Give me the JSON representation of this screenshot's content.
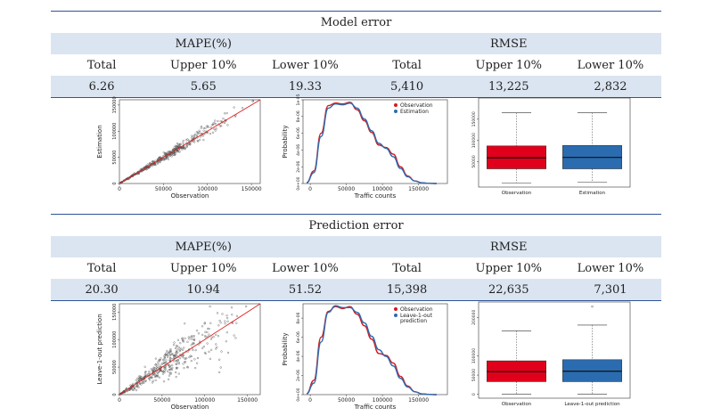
{
  "sections": [
    {
      "title": "Model error",
      "groups": [
        "MAPE(%)",
        "RMSE"
      ],
      "headers": [
        "Total",
        "Upper 10%",
        "Lower 10%",
        "Total",
        "Upper 10%",
        "Lower 10%"
      ],
      "values": [
        "6.26",
        "5.65",
        "19.33",
        "5,410",
        "13,225",
        "2,832"
      ],
      "scatter": {
        "type": "scatter",
        "xlabel": "Observation",
        "ylabel": "Estimation",
        "xticks": [
          "0",
          "50000",
          "100000",
          "150000"
        ],
        "yticks": [
          "0",
          "50000",
          "100000",
          "150000"
        ],
        "xlim": [
          0,
          160000
        ],
        "ylim": [
          0,
          160000
        ],
        "spread": 0.07,
        "fit_line_color": "#e02020"
      },
      "density": {
        "type": "line",
        "xlabel": "Traffic counts",
        "ylabel": "Probability",
        "xticks": [
          "0",
          "50000",
          "100000",
          "150000"
        ],
        "yticks": [
          "0e+00",
          "2e-06",
          "4e-06",
          "6e-06",
          "8e-06",
          "1e-05"
        ],
        "xlim": [
          -10000,
          190000
        ],
        "ylim": [
          0,
          1e-05
        ],
        "series": [
          {
            "name": "Observation",
            "color": "#d7191c",
            "x": [
              -5000,
              5000,
              15000,
              25000,
              35000,
              45000,
              55000,
              65000,
              75000,
              85000,
              95000,
              105000,
              115000,
              125000,
              135000,
              145000,
              155000,
              165000,
              175000
            ],
            "y": [
              1e-07,
              1.5e-06,
              6e-06,
              9.3e-06,
              9.6e-06,
              9.5e-06,
              9.7e-06,
              8.8e-06,
              7.5e-06,
              6.1e-06,
              4.6e-06,
              4.3e-06,
              3.5e-06,
              2e-06,
              9e-07,
              3e-07,
              8e-08,
              2e-08,
              0.0
            ]
          },
          {
            "name": "Estimation",
            "color": "#2b6cb0",
            "x": [
              -5000,
              5000,
              15000,
              25000,
              35000,
              45000,
              55000,
              65000,
              75000,
              85000,
              95000,
              105000,
              115000,
              125000,
              135000,
              145000,
              155000,
              165000,
              175000
            ],
            "y": [
              1e-07,
              1.3e-06,
              5.6e-06,
              9e-06,
              9.5e-06,
              9.4e-06,
              9.6e-06,
              9e-06,
              7.7e-06,
              6.3e-06,
              4.8e-06,
              4.2e-06,
              3.2e-06,
              1.8e-06,
              8e-07,
              3e-07,
              8e-08,
              2e-08,
              0.0
            ]
          }
        ]
      },
      "box": {
        "type": "box",
        "ylim": [
          -10000,
          200000
        ],
        "yticks": [
          {
            "v": 50000,
            "t": "50000"
          },
          {
            "v": 100000,
            "t": "100000"
          },
          {
            "v": 150000,
            "t": "150000"
          }
        ],
        "boxes": [
          {
            "label": "Observation",
            "color": "#e0001b",
            "min": 0,
            "q1": 33000,
            "median": 59000,
            "q3": 87000,
            "max": 165000,
            "outliers": []
          },
          {
            "label": "Estimation",
            "color": "#2b6cb0",
            "min": 1000,
            "q1": 33000,
            "median": 60000,
            "q3": 88000,
            "max": 165000,
            "outliers": []
          }
        ]
      }
    },
    {
      "title": "Prediction error",
      "groups": [
        "MAPE(%)",
        "RMSE"
      ],
      "headers": [
        "Total",
        "Upper 10%",
        "Lower 10%",
        "Total",
        "Upper 10%",
        "Lower 10%"
      ],
      "values": [
        "20.30",
        "10.94",
        "51.52",
        "15,398",
        "22,635",
        "7,301"
      ],
      "scatter": {
        "type": "scatter",
        "xlabel": "Observation",
        "ylabel": "Leave-1-out prediction",
        "xticks": [
          "0",
          "50000",
          "100000",
          "150000"
        ],
        "yticks": [
          "0",
          "50000",
          "100000",
          "150000"
        ],
        "xlim": [
          0,
          165000
        ],
        "ylim": [
          0,
          165000
        ],
        "spread": 0.22,
        "fit_line_color": "#e02020"
      },
      "density": {
        "type": "line",
        "xlabel": "Traffic counts",
        "ylabel": "Probability",
        "xticks": [
          "0",
          "50000",
          "100000",
          "150000"
        ],
        "yticks": [
          "0e+00",
          "2e-06",
          "4e-06",
          "6e-06",
          "8e-06"
        ],
        "xlim": [
          -10000,
          190000
        ],
        "ylim": [
          0,
          9.5e-06
        ],
        "series": [
          {
            "name": "Observation",
            "color": "#d7191c",
            "x": [
              -5000,
              5000,
              15000,
              25000,
              35000,
              45000,
              55000,
              65000,
              75000,
              85000,
              95000,
              105000,
              115000,
              125000,
              135000,
              145000,
              155000,
              165000,
              175000
            ],
            "y": [
              1e-07,
              1.5e-06,
              6e-06,
              8.7e-06,
              9.2e-06,
              9e-06,
              9.2e-06,
              8.4e-06,
              7.2e-06,
              5.8e-06,
              4.3e-06,
              4.1e-06,
              3.3e-06,
              1.9e-06,
              9e-07,
              3e-07,
              8e-08,
              2e-08,
              0.0
            ]
          },
          {
            "name": "Leave-1-out\nprediction",
            "color": "#2b6cb0",
            "x": [
              -5000,
              5000,
              15000,
              25000,
              35000,
              45000,
              55000,
              65000,
              75000,
              85000,
              95000,
              105000,
              115000,
              125000,
              135000,
              145000,
              155000,
              165000,
              175000
            ],
            "y": [
              1e-07,
              1.2e-06,
              5.5e-06,
              8.6e-06,
              9.3e-06,
              9.1e-06,
              9.1e-06,
              8.6e-06,
              7.5e-06,
              6.1e-06,
              4.7e-06,
              4e-06,
              3e-06,
              1.7e-06,
              8e-07,
              3e-07,
              8e-08,
              2e-08,
              0.0
            ]
          }
        ]
      },
      "box": {
        "type": "box",
        "ylim": [
          -10000,
          240000
        ],
        "yticks": [
          {
            "v": 0,
            "t": "0"
          },
          {
            "v": 50000,
            "t": "50000"
          },
          {
            "v": 100000,
            "t": "100000"
          },
          {
            "v": 200000,
            "t": "200000"
          }
        ],
        "boxes": [
          {
            "label": "Observation",
            "color": "#e0001b",
            "min": 0,
            "q1": 33000,
            "median": 59000,
            "q3": 87000,
            "max": 165000,
            "outliers": []
          },
          {
            "label": "Leave-1-out prediction",
            "color": "#2b6cb0",
            "min": 0,
            "q1": 33000,
            "median": 60000,
            "q3": 90000,
            "max": 180000,
            "outliers": [
              228000
            ]
          }
        ]
      }
    }
  ]
}
